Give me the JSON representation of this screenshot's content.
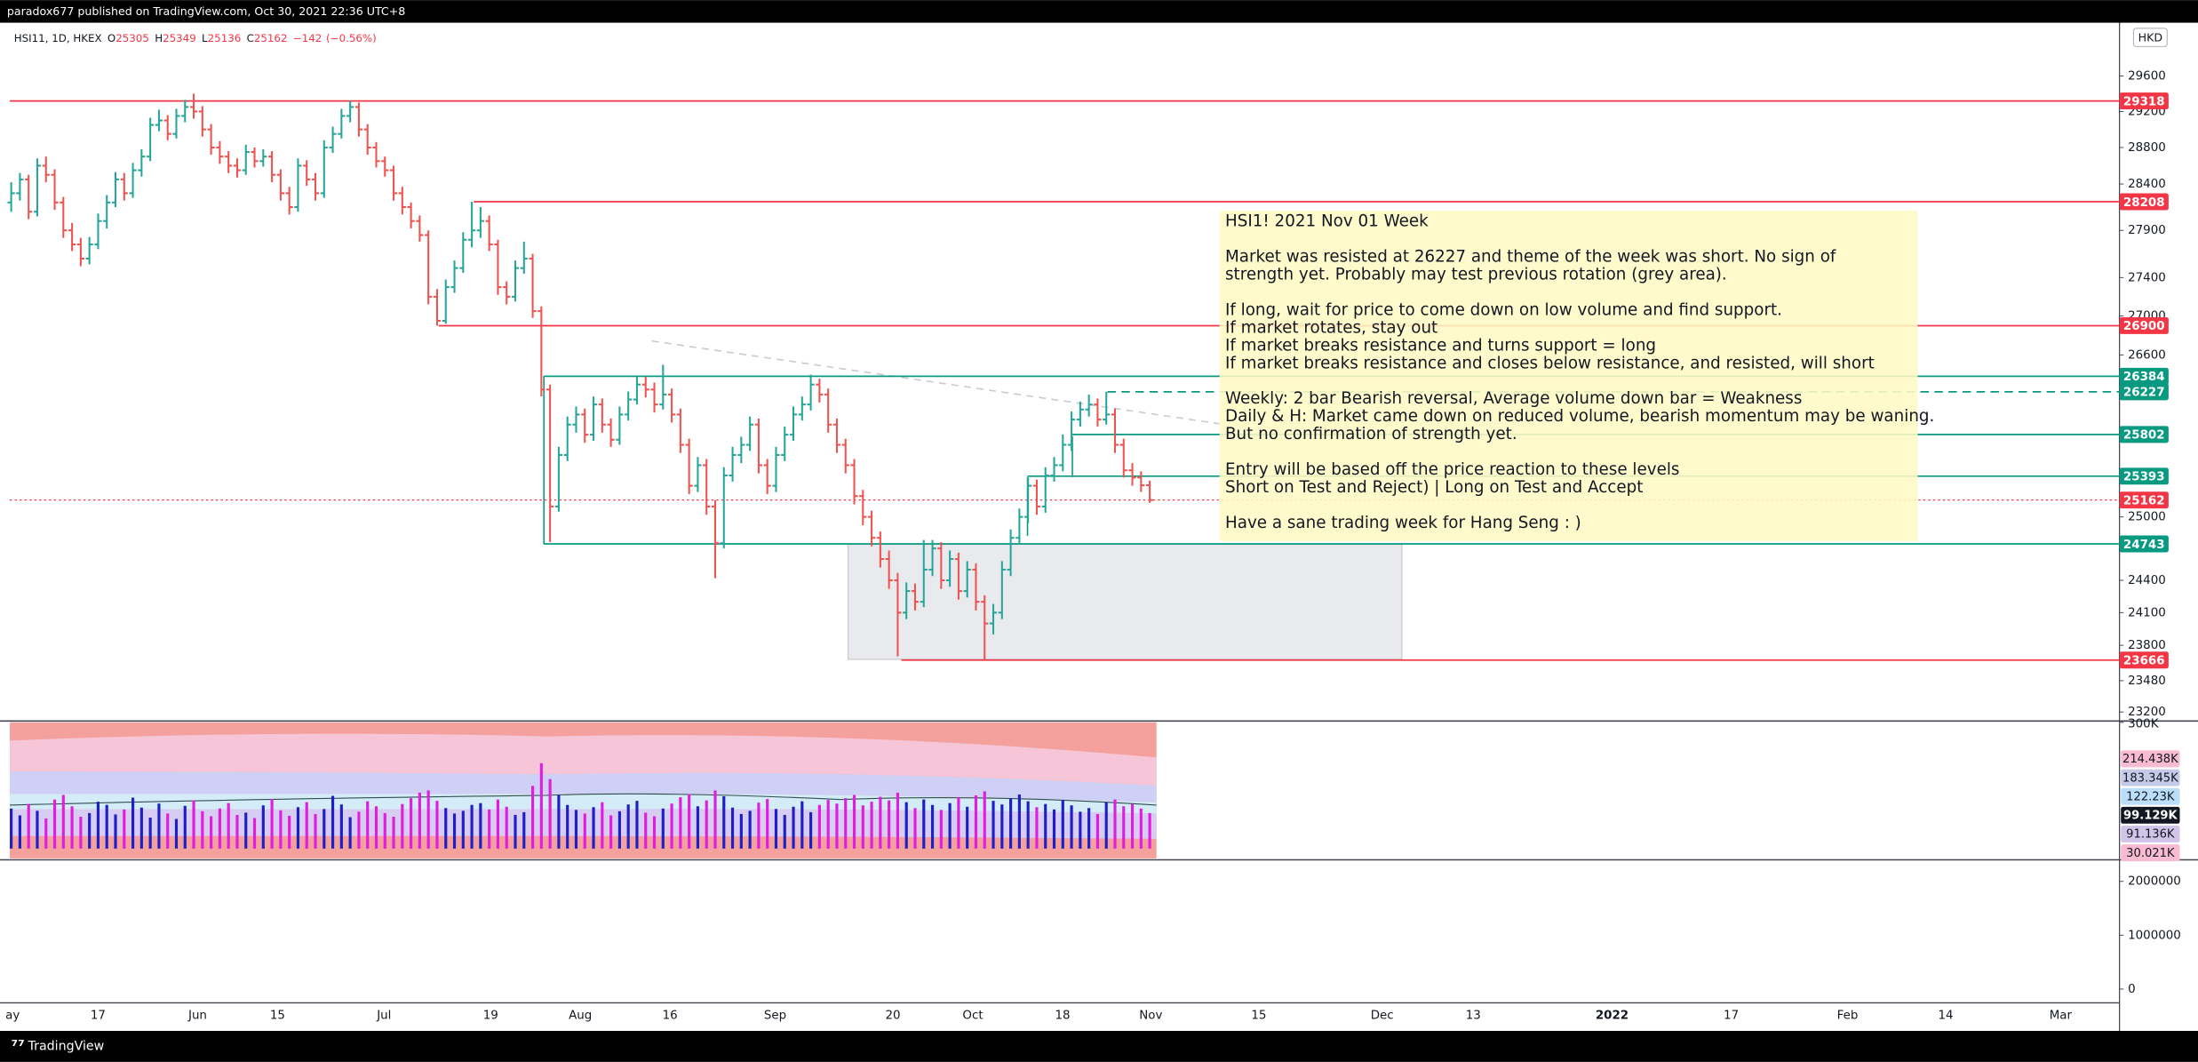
{
  "header": {
    "author_line": "paradox677 published on TradingView.com, Oct 30, 2021 22:36 UTC+8"
  },
  "footer": {
    "brand": "TradingView"
  },
  "chart_data": {
    "type": "ohlc",
    "symbol": "HSI11, 1D, HKEX",
    "legend": {
      "open_prefix": "O",
      "open": 25305,
      "high_prefix": "H",
      "high": 25349,
      "low_prefix": "L",
      "low": 25136,
      "close_prefix": "C",
      "close": 25162,
      "change": {
        "value": -142,
        "label": "−142"
      },
      "change_pct": {
        "value": -0.56,
        "label": "(−0.56%)"
      }
    },
    "currency": "HKD",
    "log_scale": true,
    "up_color": "#26a69a",
    "down_color": "#ef5350",
    "ylim": [
      23120,
      30210
    ],
    "yticks": [
      29600,
      29200,
      28800,
      28400,
      27900,
      27400,
      27000,
      26600,
      25000,
      24400,
      24100,
      23800,
      23480,
      23200
    ],
    "x_labels": [
      "ay",
      "17",
      "Jun",
      "15",
      "Jul",
      "19",
      "Aug",
      "16",
      "Sep",
      "20",
      "Oct",
      "18",
      "Nov",
      "15",
      "Dec",
      "13",
      "2022",
      "17",
      "Feb",
      "14",
      "Mar"
    ],
    "ohlc": [
      [
        28200,
        28420,
        28100,
        28300
      ],
      [
        28300,
        28520,
        28220,
        28450
      ],
      [
        28450,
        28500,
        28020,
        28100
      ],
      [
        28100,
        28680,
        28050,
        28600
      ],
      [
        28600,
        28700,
        28420,
        28500
      ],
      [
        28500,
        28560,
        28120,
        28200
      ],
      [
        28200,
        28260,
        27820,
        27900
      ],
      [
        27900,
        27980,
        27680,
        27750
      ],
      [
        27750,
        27820,
        27520,
        27600
      ],
      [
        27600,
        27830,
        27540,
        27750
      ],
      [
        27750,
        28080,
        27700,
        28000
      ],
      [
        28000,
        28280,
        27920,
        28200
      ],
      [
        28200,
        28530,
        28150,
        28450
      ],
      [
        28450,
        28520,
        28220,
        28300
      ],
      [
        28300,
        28630,
        28250,
        28550
      ],
      [
        28550,
        28780,
        28480,
        28700
      ],
      [
        28700,
        29130,
        28650,
        29050
      ],
      [
        29050,
        29220,
        28980,
        29100
      ],
      [
        29100,
        29160,
        28880,
        28950
      ],
      [
        28950,
        29230,
        28900,
        29150
      ],
      [
        29150,
        29330,
        29080,
        29250
      ],
      [
        29250,
        29400,
        29120,
        29200
      ],
      [
        29200,
        29260,
        28920,
        29000
      ],
      [
        29000,
        29060,
        28720,
        28800
      ],
      [
        28800,
        28870,
        28620,
        28700
      ],
      [
        28700,
        28760,
        28520,
        28600
      ],
      [
        28600,
        28680,
        28470,
        28550
      ],
      [
        28550,
        28830,
        28500,
        28750
      ],
      [
        28750,
        28800,
        28580,
        28650
      ],
      [
        28650,
        28780,
        28590,
        28700
      ],
      [
        28700,
        28760,
        28420,
        28500
      ],
      [
        28500,
        28560,
        28220,
        28300
      ],
      [
        28300,
        28370,
        28070,
        28150
      ],
      [
        28150,
        28680,
        28100,
        28600
      ],
      [
        28600,
        28660,
        28380,
        28450
      ],
      [
        28450,
        28520,
        28220,
        28300
      ],
      [
        28300,
        28880,
        28250,
        28800
      ],
      [
        28800,
        29030,
        28740,
        28950
      ],
      [
        28950,
        29230,
        28900,
        29150
      ],
      [
        29150,
        29318,
        29080,
        29250
      ],
      [
        29250,
        29300,
        28920,
        29000
      ],
      [
        29000,
        29060,
        28720,
        28800
      ],
      [
        28800,
        28860,
        28580,
        28650
      ],
      [
        28650,
        28700,
        28480,
        28550
      ],
      [
        28550,
        28600,
        28220,
        28300
      ],
      [
        28300,
        28370,
        28070,
        28150
      ],
      [
        28150,
        28200,
        27920,
        28000
      ],
      [
        28000,
        28060,
        27780,
        27850
      ],
      [
        27850,
        27900,
        27120,
        27200
      ],
      [
        27200,
        27280,
        26900,
        26950
      ],
      [
        26950,
        27380,
        26920,
        27300
      ],
      [
        27300,
        27580,
        27240,
        27500
      ],
      [
        27500,
        27880,
        27450,
        27800
      ],
      [
        27800,
        28208,
        27720,
        27900
      ],
      [
        27900,
        28150,
        27820,
        28000
      ],
      [
        28000,
        28060,
        27680,
        27750
      ],
      [
        27750,
        27800,
        27220,
        27300
      ],
      [
        27300,
        27360,
        27120,
        27200
      ],
      [
        27200,
        27580,
        27150,
        27500
      ],
      [
        27500,
        27780,
        27440,
        27600
      ],
      [
        27600,
        27650,
        26980,
        27050
      ],
      [
        27050,
        27100,
        26180,
        26250
      ],
      [
        26250,
        26300,
        24760,
        25100
      ],
      [
        25100,
        25680,
        25050,
        25600
      ],
      [
        25600,
        25980,
        25540,
        25900
      ],
      [
        25900,
        26080,
        25820,
        26000
      ],
      [
        26000,
        26060,
        25720,
        25800
      ],
      [
        25800,
        26180,
        25740,
        26100
      ],
      [
        26100,
        26160,
        25820,
        25900
      ],
      [
        25900,
        25960,
        25680,
        25750
      ],
      [
        25750,
        26080,
        25700,
        26000
      ],
      [
        26000,
        26230,
        25940,
        26150
      ],
      [
        26150,
        26384,
        26100,
        26300
      ],
      [
        26300,
        26380,
        26170,
        26250
      ],
      [
        26250,
        26320,
        26020,
        26100
      ],
      [
        26100,
        26500,
        26050,
        26200
      ],
      [
        26200,
        26260,
        25920,
        26000
      ],
      [
        26000,
        26060,
        25620,
        25700
      ],
      [
        25700,
        25760,
        25220,
        25300
      ],
      [
        25300,
        25580,
        25240,
        25500
      ],
      [
        25500,
        25560,
        25020,
        25100
      ],
      [
        25100,
        25160,
        24420,
        24750
      ],
      [
        24750,
        25480,
        24700,
        25400
      ],
      [
        25400,
        25680,
        25340,
        25600
      ],
      [
        25600,
        25780,
        25520,
        25700
      ],
      [
        25700,
        25980,
        25640,
        25900
      ],
      [
        25900,
        25960,
        25420,
        25500
      ],
      [
        25500,
        25560,
        25220,
        25300
      ],
      [
        25300,
        25680,
        25240,
        25600
      ],
      [
        25600,
        25880,
        25540,
        25800
      ],
      [
        25800,
        26080,
        25740,
        26000
      ],
      [
        26000,
        26180,
        25940,
        26100
      ],
      [
        26100,
        26400,
        26040,
        26300
      ],
      [
        26300,
        26360,
        26120,
        26200
      ],
      [
        26200,
        26260,
        25820,
        25900
      ],
      [
        25900,
        25960,
        25620,
        25700
      ],
      [
        25700,
        25760,
        25420,
        25500
      ],
      [
        25500,
        25560,
        25120,
        25200
      ],
      [
        25200,
        25260,
        24920,
        25000
      ],
      [
        25000,
        25060,
        24720,
        24800
      ],
      [
        24800,
        24860,
        24520,
        24600
      ],
      [
        24600,
        24680,
        24320,
        24400
      ],
      [
        24400,
        24470,
        23700,
        24100
      ],
      [
        24100,
        24380,
        24040,
        24300
      ],
      [
        24300,
        24370,
        24120,
        24200
      ],
      [
        24200,
        24780,
        24150,
        24500
      ],
      [
        24500,
        24780,
        24440,
        24700
      ],
      [
        24700,
        24760,
        24320,
        24400
      ],
      [
        24400,
        24680,
        24340,
        24600
      ],
      [
        24600,
        24660,
        24220,
        24300
      ],
      [
        24300,
        24580,
        24240,
        24500
      ],
      [
        24500,
        24560,
        24120,
        24200
      ],
      [
        24200,
        24260,
        23666,
        24000
      ],
      [
        24000,
        24180,
        23900,
        24100
      ],
      [
        24100,
        24580,
        24040,
        24500
      ],
      [
        24500,
        24880,
        24440,
        24800
      ],
      [
        24800,
        25080,
        24740,
        25000
      ],
      [
        25000,
        25380,
        24940,
        25300
      ],
      [
        25300,
        25360,
        25020,
        25100
      ],
      [
        25100,
        25480,
        25040,
        25400
      ],
      [
        25400,
        25580,
        25340,
        25500
      ],
      [
        25500,
        25802,
        25440,
        25700
      ],
      [
        25700,
        26030,
        25640,
        25950
      ],
      [
        25950,
        26130,
        25880,
        26050
      ],
      [
        26050,
        26200,
        25980,
        26100
      ],
      [
        26100,
        26160,
        25880,
        25950
      ],
      [
        25950,
        26227,
        25900,
        26000
      ],
      [
        26000,
        26060,
        25620,
        25700
      ],
      [
        25700,
        25760,
        25380,
        25450
      ],
      [
        25450,
        25520,
        25300,
        25380
      ],
      [
        25380,
        25440,
        25240,
        25304
      ],
      [
        25305,
        25349,
        25136,
        25162
      ]
    ],
    "price_levels": [
      {
        "value": 29318,
        "color": "#f23645",
        "style": "solid"
      },
      {
        "value": 28208,
        "color": "#f23645",
        "style": "solid"
      },
      {
        "value": 26900,
        "color": "#f23645",
        "style": "solid"
      },
      {
        "value": 26384,
        "color": "#089981",
        "style": "solid"
      },
      {
        "value": 26227,
        "color": "#089981",
        "style": "dashed"
      },
      {
        "value": 25802,
        "color": "#089981",
        "style": "solid"
      },
      {
        "value": 25393,
        "color": "#089981",
        "style": "solid"
      },
      {
        "value": 25162,
        "color": "#f23645",
        "style": "dotted"
      },
      {
        "value": 24743,
        "color": "#089981",
        "style": "solid"
      },
      {
        "value": 23666,
        "color": "#f23645",
        "style": "solid"
      }
    ],
    "annotation": {
      "background": "#fff9c4",
      "paragraphs": [
        [
          "HSI1!  2021 Nov 01 Week"
        ],
        [
          "Market was resisted at 26227 and theme of the week was short. No sign of",
          "strength yet. Probably may test previous rotation (grey area)."
        ],
        [
          "If long, wait for price to come down on low volume and find support.",
          "If market rotates, stay out",
          "If market breaks resistance and turns support = long",
          "If market breaks resistance and closes below resistance, and resisted, will short"
        ],
        [
          "Weekly: 2 bar Bearish reversal, Average volume down bar = Weakness",
          "Daily & H: Market came down on reduced volume, bearish momentum may be waning.",
          "But no confirmation of strength yet."
        ],
        [
          "Entry will be based off the price reaction to these levels",
          "Short on Test and Reject)  |   Long on Test and Accept"
        ],
        [
          "Have a sane trading week for Hang Seng : )"
        ]
      ]
    },
    "volume": {
      "up_color": "#1f1fc8",
      "down_color": "#e01ee0",
      "ylim": [
        0,
        300000
      ],
      "yticks": [
        {
          "value": 300000,
          "label": "300K"
        }
      ],
      "values": [
        110000,
        95000,
        120000,
        105000,
        88000,
        130000,
        140000,
        115000,
        92000,
        100000,
        125000,
        118000,
        97000,
        108000,
        134000,
        112000,
        90000,
        121000,
        99000,
        87000,
        116000,
        128000,
        104000,
        93000,
        110000,
        122000,
        96000,
        101000,
        89000,
        117000,
        131000,
        106000,
        94000,
        113000,
        124000,
        98000,
        109000,
        138000,
        119000,
        91000,
        103000,
        126000,
        115000,
        100000,
        92000,
        120000,
        133000,
        145000,
        150000,
        127000,
        111000,
        99000,
        105000,
        118000,
        122000,
        108000,
        130000,
        114000,
        96000,
        102000,
        160000,
        210000,
        175000,
        140000,
        118000,
        107000,
        99000,
        113000,
        124000,
        95000,
        104000,
        119000,
        127000,
        101000,
        93000,
        110000,
        121000,
        135000,
        142000,
        115000,
        128000,
        150000,
        137000,
        112000,
        98000,
        105000,
        123000,
        131000,
        109000,
        96000,
        114000,
        126000,
        102000,
        118000,
        129000,
        121000,
        133000,
        140000,
        117000,
        125000,
        136000,
        128000,
        145000,
        124000,
        111000,
        130000,
        118000,
        107000,
        122000,
        135000,
        114000,
        139000,
        148000,
        127000,
        119000,
        132000,
        141000,
        126000,
        113000,
        120000,
        108000,
        129000,
        117000,
        103000,
        111000,
        98000,
        124000,
        130000,
        115000,
        120000,
        110000,
        100000
      ],
      "indicator_labels": [
        {
          "value": 214438,
          "label": "214.438K",
          "color": "#f8bbd0",
          "text_color": "#131722"
        },
        {
          "value": 183345,
          "label": "183.345K",
          "color": "#c5cae9",
          "text_color": "#131722"
        },
        {
          "value": 122230,
          "label": "122.23K",
          "color": "#bbdefb",
          "text_color": "#131722"
        },
        {
          "value": 99129,
          "label": "99.129K",
          "color": "#131722",
          "text_color": "#ffffff"
        },
        {
          "value": 91136,
          "label": "91.136K",
          "color": "#d1c4e9",
          "text_color": "#131722"
        },
        {
          "value": 30021,
          "label": "30.021K",
          "color": "#f8bbd0",
          "text_color": "#131722"
        }
      ]
    },
    "lower_pane": {
      "ylim": [
        -230000,
        2400000
      ],
      "yticks": [
        0,
        1000000,
        2000000
      ]
    }
  }
}
